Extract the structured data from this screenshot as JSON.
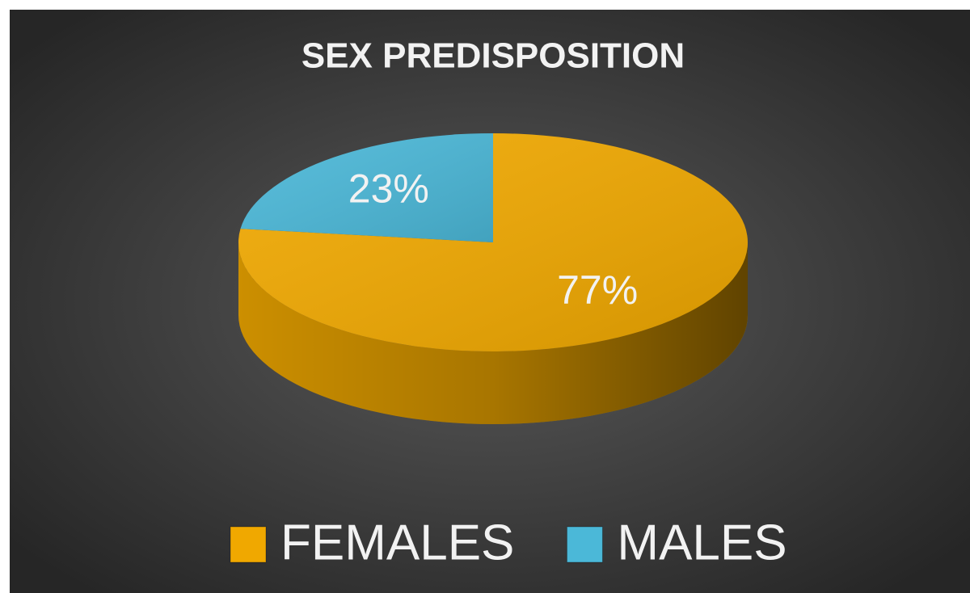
{
  "chart_data": {
    "type": "pie",
    "title": "SEX PREDISPOSITION",
    "categories": [
      "FEMALES",
      "MALES"
    ],
    "values": [
      77,
      23
    ],
    "value_labels": [
      "77%",
      "23%"
    ],
    "colors": [
      "#f0a800",
      "#4bb8d8"
    ],
    "legend": "bottom"
  }
}
